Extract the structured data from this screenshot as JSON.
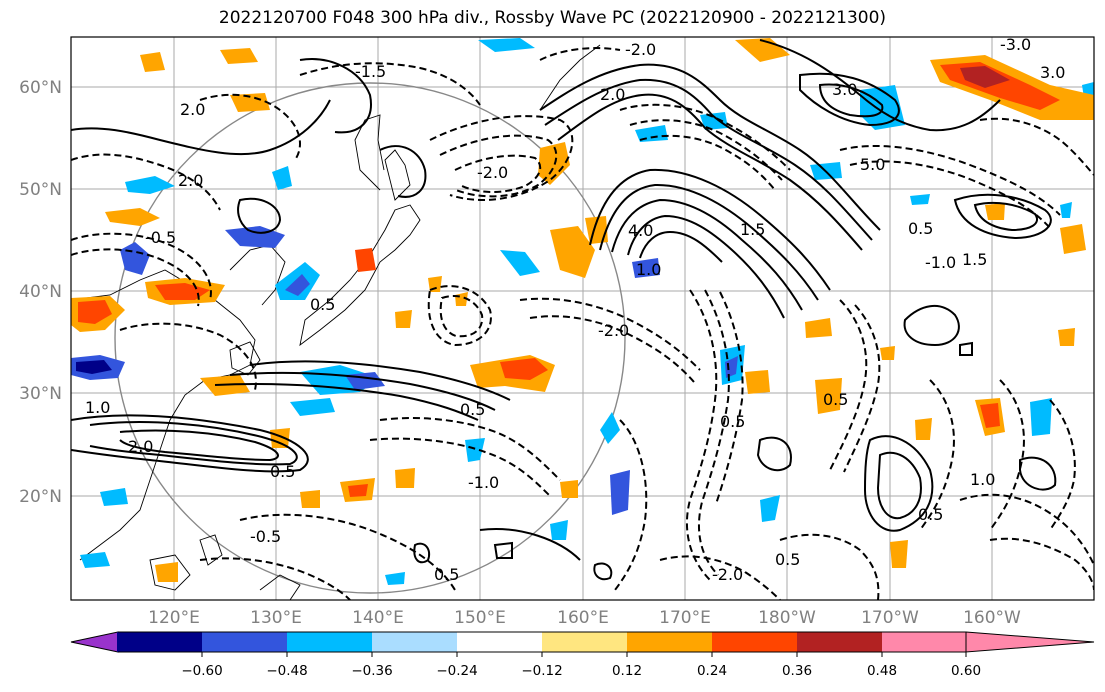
{
  "title": "2022120700 F048 300 hPa div., Rossby Wave PC (2022120900 - 2022121300)",
  "map": {
    "lon_labels": [
      "120°E",
      "130°E",
      "140°E",
      "150°E",
      "160°E",
      "170°E",
      "180°W",
      "170°W",
      "160°W"
    ],
    "lat_labels": [
      "60°N",
      "50°N",
      "40°N",
      "30°N",
      "20°N"
    ],
    "contour_labels": [
      "-3.0",
      "-2.0",
      "-1.5",
      "-1.0",
      "-0.5",
      "0.5",
      "1.0",
      "1.5",
      "2.0",
      "3.0",
      "4.0",
      "5.0"
    ]
  },
  "colorbar": {
    "ticks": [
      "−0.60",
      "−0.48",
      "−0.36",
      "−0.24",
      "−0.12",
      "0.12",
      "0.24",
      "0.36",
      "0.48",
      "0.60"
    ],
    "colors": [
      "#9933cc",
      "#000088",
      "#3355dd",
      "#00bbff",
      "#aaddff",
      "#ffffff",
      "#ffe680",
      "#ffa500",
      "#ff4500",
      "#b22222",
      "#ff88aa"
    ]
  }
}
